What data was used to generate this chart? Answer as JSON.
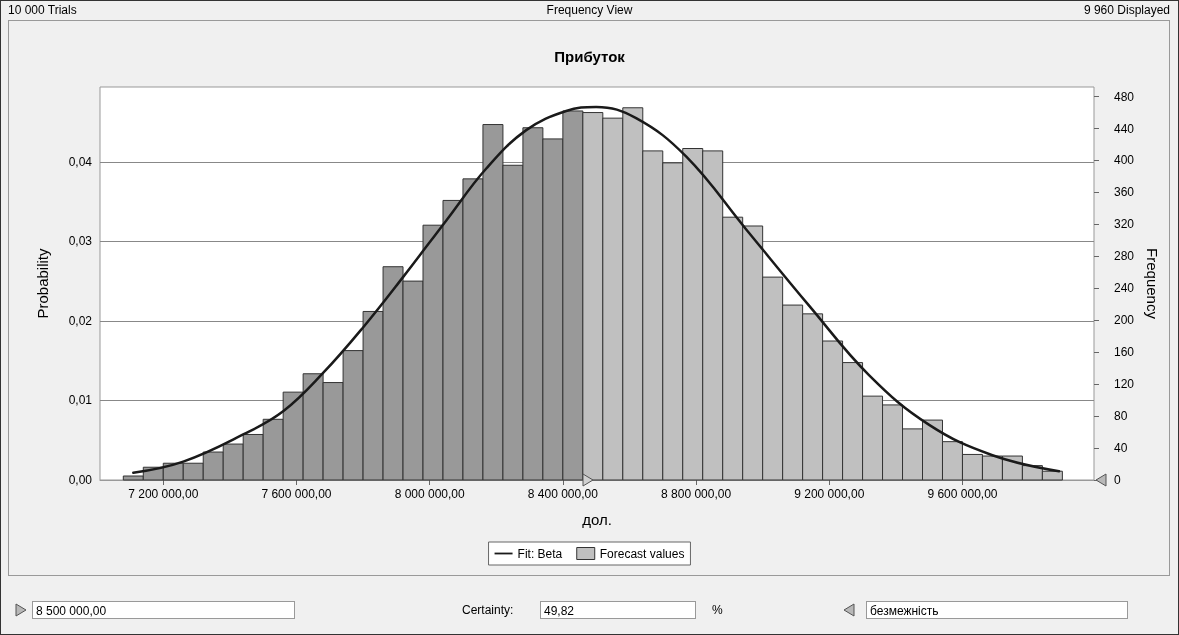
{
  "chart_data": {
    "type": "histogram",
    "title": "Прибуток",
    "xlabel": "дол.",
    "ylabel": "Probability",
    "y2label": "Frequency",
    "bins": [
      7080000,
      7140000,
      7200000,
      7260000,
      7320000,
      7380000,
      7440000,
      7500000,
      7560000,
      7620000,
      7680000,
      7740000,
      7800000,
      7860000,
      7920000,
      7980000,
      8040000,
      8100000,
      8160000,
      8220000,
      8280000,
      8340000,
      8400000,
      8460000,
      8520000,
      8580000,
      8640000,
      8700000,
      8760000,
      8820000,
      8880000,
      8940000,
      9000000,
      9060000,
      9120000,
      9180000,
      9240000,
      9300000,
      9360000,
      9420000,
      9480000,
      9540000,
      9600000,
      9660000,
      9720000,
      9780000,
      9840000,
      9900000
    ],
    "series": [
      {
        "name": "Forecast values",
        "color": "#c0c0c0",
        "axis": "y2",
        "values": [
          5,
          16,
          21,
          21,
          35,
          45,
          57,
          76,
          110,
          133,
          122,
          162,
          211,
          267,
          249,
          319,
          350,
          377,
          445,
          394,
          441,
          427,
          462,
          460,
          453,
          466,
          412,
          397,
          415,
          412,
          329,
          318,
          254,
          219,
          208,
          174,
          147,
          105,
          94,
          64,
          75,
          48,
          32,
          30,
          30,
          18,
          11
        ],
        "colors": [
          "#999999",
          "#999999",
          "#999999",
          "#999999",
          "#999999",
          "#999999",
          "#999999",
          "#999999",
          "#999999",
          "#999999",
          "#999999",
          "#999999",
          "#999999",
          "#999999",
          "#999999",
          "#999999",
          "#999999",
          "#999999",
          "#999999",
          "#999999",
          "#999999",
          "#999999",
          "#999999",
          "#c0c0c0",
          "#c0c0c0",
          "#c0c0c0",
          "#c0c0c0",
          "#c0c0c0",
          "#c0c0c0",
          "#c0c0c0",
          "#c0c0c0",
          "#c0c0c0",
          "#c0c0c0",
          "#c0c0c0",
          "#c0c0c0",
          "#c0c0c0",
          "#c0c0c0",
          "#c0c0c0",
          "#c0c0c0",
          "#c0c0c0",
          "#c0c0c0",
          "#c0c0c0",
          "#c0c0c0",
          "#c0c0c0",
          "#c0c0c0",
          "#c0c0c0",
          "#c0c0c0"
        ]
      },
      {
        "type": "line",
        "name": "Fit: Beta",
        "color": "#1a1a1a",
        "axis": "y2",
        "x": [
          7110000,
          7260000,
          7440000,
          7560000,
          7680000,
          7800000,
          7920000,
          8050000,
          8170000,
          8290000,
          8410000,
          8500000,
          8620000,
          8770000,
          8950000,
          9140000,
          9320000,
          9500000,
          9690000,
          9890000
        ],
        "values": [
          9,
          23,
          57,
          86,
          134,
          191,
          254,
          325,
          390,
          438,
          462,
          467,
          453,
          405,
          314,
          218,
          131,
          69,
          31,
          11
        ]
      }
    ],
    "xlim": [
      7010000,
      9995000
    ],
    "xticks": [
      {
        "value": 7200000,
        "label": "7 200 000,00"
      },
      {
        "value": 7600000,
        "label": "7 600 000,00"
      },
      {
        "value": 8000000,
        "label": "8 000 000,00"
      },
      {
        "value": 8400000,
        "label": "8 400 000,00"
      },
      {
        "value": 8800000,
        "label": "8 800 000,00"
      },
      {
        "value": 9200000,
        "label": "9 200 000,00"
      },
      {
        "value": 9600000,
        "label": "9 600 000,00"
      }
    ],
    "ylim": [
      0,
      0.0494
    ],
    "yticks": [
      {
        "value": 0,
        "label": "0,00"
      },
      {
        "value": 0.01,
        "label": "0,01"
      },
      {
        "value": 0.02,
        "label": "0,02"
      },
      {
        "value": 0.03,
        "label": "0,03"
      },
      {
        "value": 0.04,
        "label": "0,04"
      }
    ],
    "y2lim": [
      0,
      492
    ],
    "y2ticks": [
      0,
      40,
      80,
      120,
      160,
      200,
      240,
      280,
      320,
      360,
      400,
      440,
      480
    ],
    "grid": "y",
    "legend": "bottom",
    "annotations": [
      "10 000 Trials",
      "Frequency View",
      "9 960 Displayed",
      "8 500 000,00",
      "Certainty:",
      "49,82",
      "%",
      "безмежність"
    ]
  }
}
